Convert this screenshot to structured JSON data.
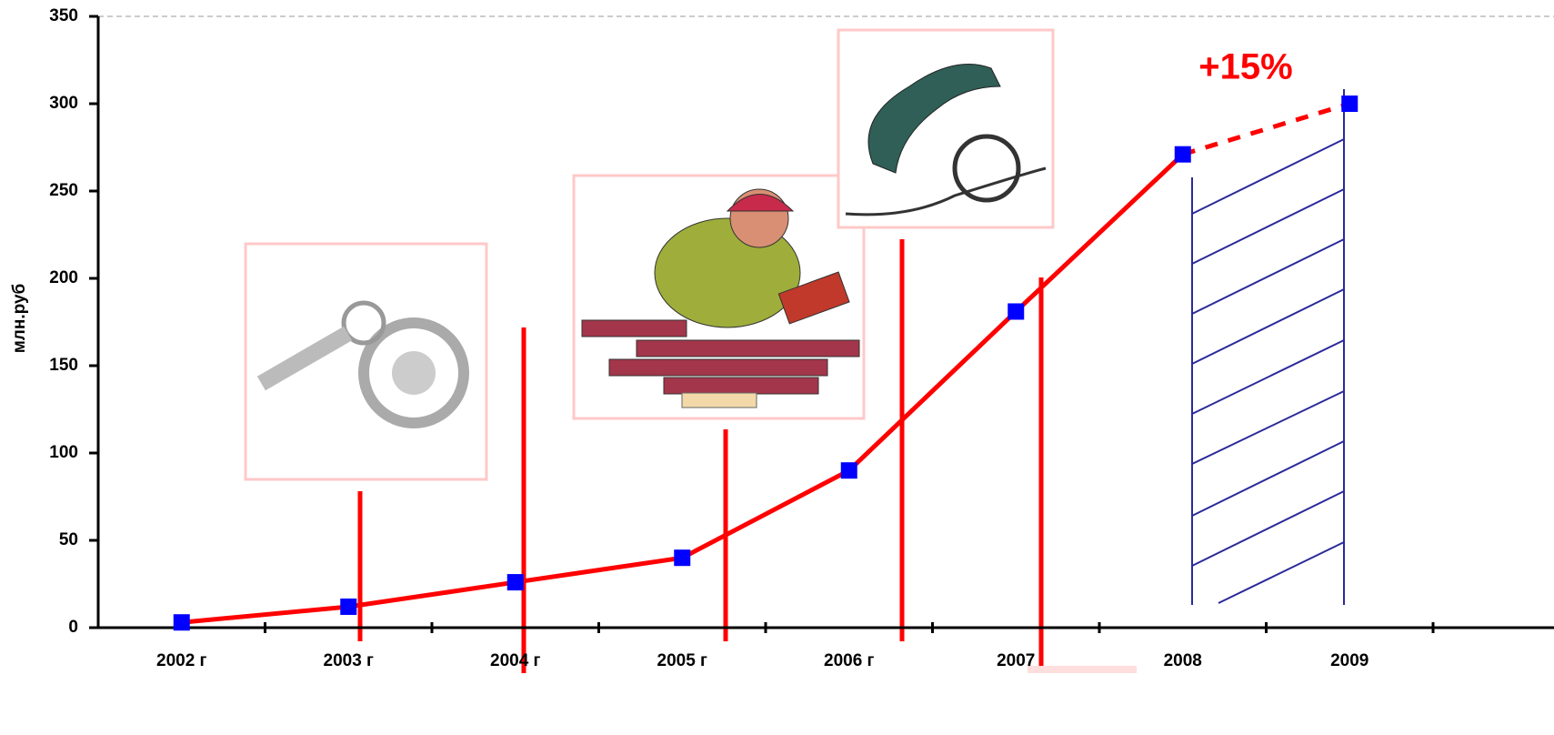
{
  "chart_data": {
    "type": "line",
    "y_label": "млн.руб",
    "annotation": "+15%",
    "categories": [
      "2002 г",
      "2003 г",
      "2004 г",
      "2005 г",
      "2006 г",
      "2007",
      "2008",
      "2009"
    ],
    "series": [
      {
        "color": "#ff0000",
        "marker_color": "#0000ff",
        "values": [
          3,
          12,
          26,
          40,
          90,
          181,
          271,
          300
        ]
      }
    ],
    "ylim": [
      0,
      350
    ],
    "yticks": [
      0,
      50,
      100,
      150,
      200,
      250,
      300,
      350
    ]
  }
}
